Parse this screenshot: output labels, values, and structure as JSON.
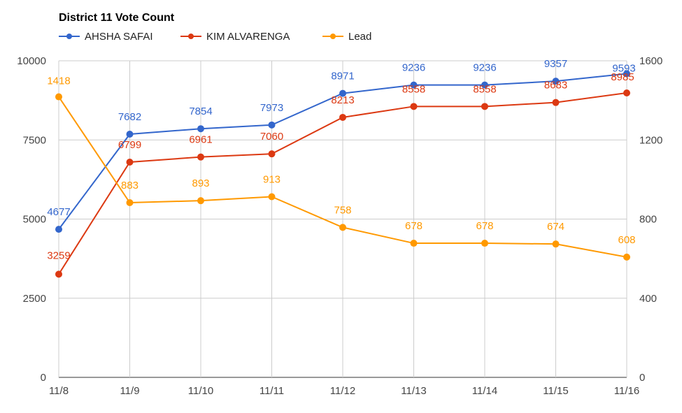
{
  "chart_data": {
    "type": "line",
    "title": "District 11 Vote Count",
    "categories": [
      "11/8",
      "11/9",
      "11/10",
      "11/11",
      "11/12",
      "11/13",
      "11/14",
      "11/15",
      "11/16"
    ],
    "series": [
      {
        "name": "AHSHA SAFAI",
        "axis": "left",
        "color": "#3366cc",
        "values": [
          4677,
          7682,
          7854,
          7973,
          8971,
          9236,
          9236,
          9357,
          9593
        ],
        "labels": [
          "4677",
          "7682",
          "7854",
          "7973",
          "8971",
          "9236",
          "9236",
          "9357",
          "9593"
        ]
      },
      {
        "name": "KIM ALVARENGA",
        "axis": "left",
        "color": "#dc3912",
        "values": [
          3259,
          6799,
          6961,
          7060,
          8213,
          8558,
          8558,
          8683,
          8985
        ],
        "labels": [
          "3259",
          "6799",
          "6961",
          "7060",
          "8213",
          "8558",
          "8558",
          "8683",
          "8985"
        ]
      },
      {
        "name": "Lead",
        "axis": "right",
        "color": "#ff9900",
        "values": [
          1418,
          883,
          893,
          913,
          758,
          678,
          678,
          674,
          608
        ],
        "labels": [
          "1418",
          "883",
          "893",
          "913",
          "758",
          "678",
          "678",
          "674",
          "608"
        ]
      }
    ],
    "y_left": {
      "range": [
        0,
        10000
      ],
      "ticks": [
        "0",
        "2500",
        "5000",
        "7500",
        "10000"
      ]
    },
    "y_right": {
      "range": [
        0,
        1600
      ],
      "ticks": [
        "0",
        "400",
        "800",
        "1200",
        "1600"
      ]
    },
    "grid": true,
    "legend_position": "top-left"
  }
}
